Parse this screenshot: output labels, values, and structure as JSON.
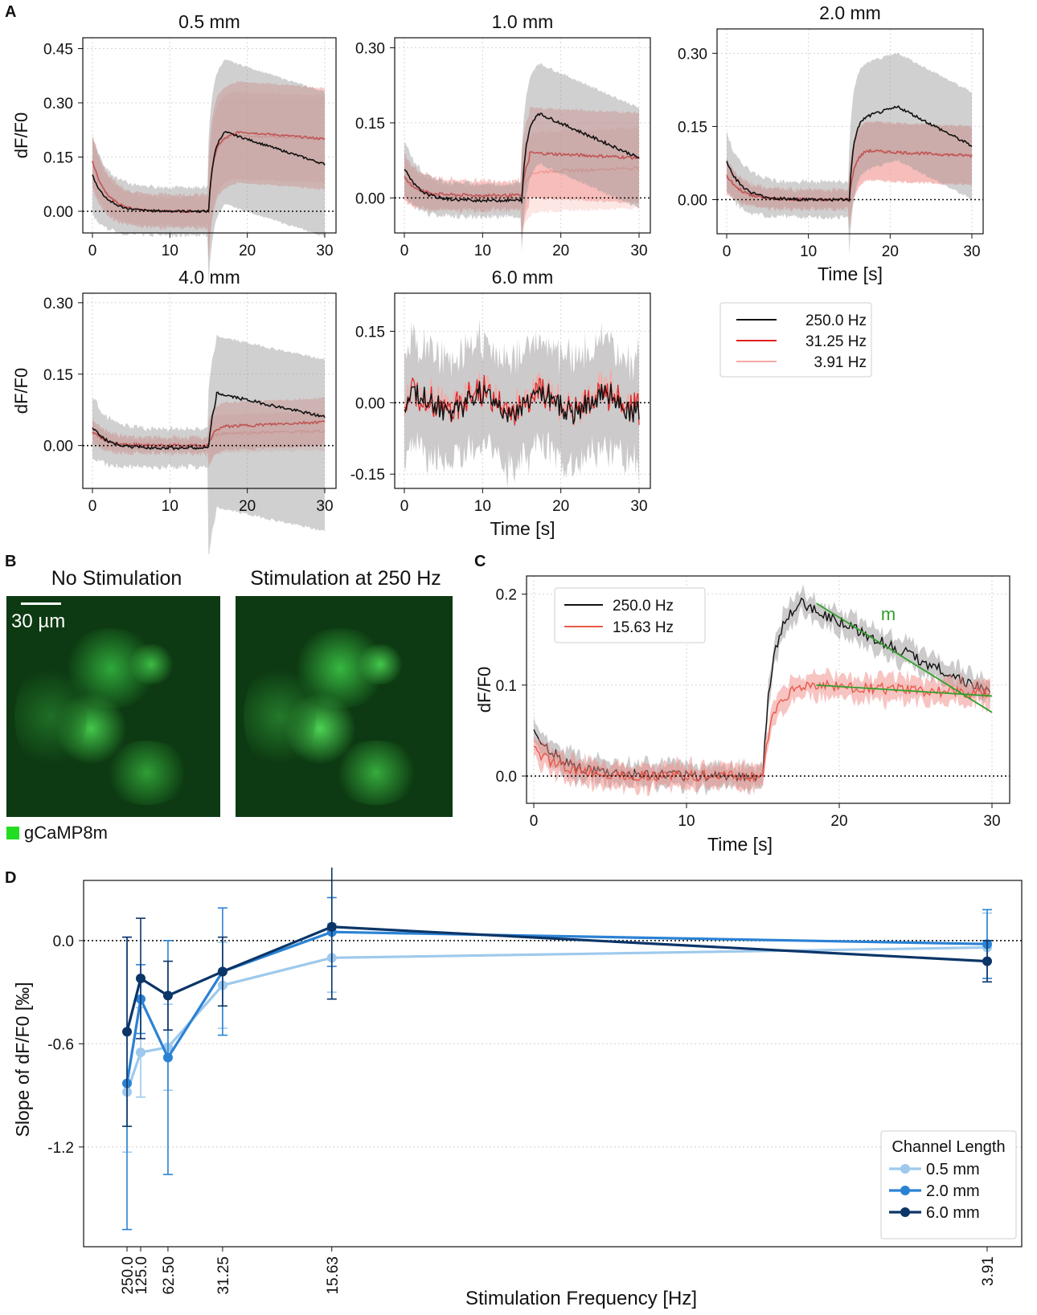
{
  "panel_letters": {
    "a": "A",
    "b": "B",
    "c": "C",
    "d": "D"
  },
  "colors": {
    "c250": "#111111",
    "c31": "#e02020",
    "c391": "#f5a8a4",
    "c1563": "#e85a4a",
    "band_gray": "#9a9696",
    "band_red": "#f08a86",
    "band_pink": "#f9c9c6",
    "fit": "#33a02c",
    "d05": "#9ec9ec",
    "d20": "#2b82d4",
    "d60": "#0c3568"
  },
  "panel_a": {
    "ylabel": "dF/F0",
    "xlabel": "Time [s]",
    "legend": [
      "250.0 Hz",
      "31.25 Hz",
      "3.91 Hz"
    ],
    "subplots": [
      {
        "title": "0.5 mm",
        "ylim": [
          -0.06,
          0.48
        ],
        "yticks": [
          "0.00",
          "0.15",
          "0.30",
          "0.45"
        ],
        "ytick_vals": [
          0,
          0.15,
          0.3,
          0.45
        ],
        "xticks": [
          "0",
          "10",
          "20",
          "30"
        ],
        "show_xlabel": false,
        "show_ylabel": true,
        "pre": [
          0.1,
          0.14,
          0.14
        ],
        "peak": [
          0.22,
          0.22,
          0.21
        ],
        "end": [
          0.13,
          0.2,
          0.2
        ],
        "pre_floor": [
          0.0,
          0.0,
          0.0
        ],
        "peak_t": [
          17,
          19,
          18
        ],
        "band": [
          0.2,
          0.14,
          0.12
        ]
      },
      {
        "title": "1.0 mm",
        "ylim": [
          -0.07,
          0.32
        ],
        "yticks": [
          "0.00",
          "0.15",
          "0.30"
        ],
        "ytick_vals": [
          0,
          0.15,
          0.3
        ],
        "xticks": [
          "0",
          "10",
          "20",
          "30"
        ],
        "show_xlabel": false,
        "show_ylabel": false,
        "pre": [
          0.06,
          0.04,
          0.04
        ],
        "peak": [
          0.17,
          0.09,
          0.06
        ],
        "end": [
          0.08,
          0.08,
          0.06
        ],
        "pre_floor": [
          -0.005,
          0.005,
          0.0
        ],
        "peak_t": [
          17,
          16,
          30
        ],
        "band": [
          0.1,
          0.09,
          0.08
        ]
      },
      {
        "title": "2.0 mm",
        "ylim": [
          -0.07,
          0.35
        ],
        "yticks": [
          "0.00",
          "0.15",
          "0.30"
        ],
        "ytick_vals": [
          0,
          0.15,
          0.3
        ],
        "xticks": [
          "0",
          "10",
          "20",
          "30"
        ],
        "show_xlabel": true,
        "show_ylabel": false,
        "pre": [
          0.08,
          0.05,
          0.05
        ],
        "peak": [
          0.19,
          0.1,
          0.1
        ],
        "end": [
          0.11,
          0.09,
          0.09
        ],
        "pre_floor": [
          0.0,
          0.0,
          0.0
        ],
        "peak_t": [
          21,
          17,
          17
        ],
        "band": [
          0.11,
          0.06,
          0.06
        ]
      },
      {
        "title": "4.0 mm",
        "ylim": [
          -0.09,
          0.32
        ],
        "yticks": [
          "0.00",
          "0.15",
          "0.30"
        ],
        "ytick_vals": [
          0,
          0.15,
          0.3
        ],
        "xticks": [
          "0",
          "10",
          "20",
          "30"
        ],
        "show_xlabel": false,
        "show_ylabel": true,
        "pre": [
          0.04,
          0.03,
          0.03
        ],
        "peak": [
          0.11,
          0.04,
          0.03
        ],
        "end": [
          0.06,
          0.05,
          0.05
        ],
        "pre_floor": [
          -0.005,
          0.0,
          0.0
        ],
        "peak_t": [
          16,
          17,
          30
        ],
        "band": [
          0.12,
          0.05,
          0.04
        ],
        "band_low_extra": 0.12
      },
      {
        "title": "6.0 mm",
        "ylim": [
          -0.18,
          0.23
        ],
        "yticks": [
          "-0.15",
          "0.00",
          "0.15"
        ],
        "ytick_vals": [
          -0.15,
          0,
          0.15
        ],
        "xticks": [
          "0",
          "10",
          "20",
          "30"
        ],
        "show_xlabel": true,
        "show_ylabel": false,
        "noisy": true
      }
    ]
  },
  "panel_b": {
    "titles": [
      "No Stimulation",
      "Stimulation at 250 Hz"
    ],
    "scale_label": "30 µm",
    "channel_label": "gCaMP8m"
  },
  "panel_c": {
    "ylabel": "dF/F0",
    "xlabel": "Time [s]",
    "yticks": [
      "0.0",
      "0.1",
      "0.2"
    ],
    "ytick_vals": [
      0,
      0.1,
      0.2
    ],
    "ylim": [
      -0.03,
      0.22
    ],
    "xticks": [
      "0",
      "10",
      "20",
      "30"
    ],
    "legend": [
      "250.0 Hz",
      "15.63 Hz"
    ],
    "fit_label": "m",
    "series": [
      {
        "name": "250.0 Hz",
        "pre": 0.05,
        "peak": 0.19,
        "end": 0.09,
        "peak_t": 17.5
      },
      {
        "name": "15.63 Hz",
        "pre": 0.03,
        "peak": 0.1,
        "end": 0.09,
        "peak_t": 18
      }
    ],
    "fits": [
      {
        "x": [
          18.5,
          30
        ],
        "y": [
          0.19,
          0.07
        ]
      },
      {
        "x": [
          18.5,
          30
        ],
        "y": [
          0.1,
          0.088
        ]
      }
    ]
  },
  "chart_data": {
    "type": "line",
    "title": "",
    "xlabel": "Stimulation Frequency [Hz]",
    "ylabel": "Slope of dF/F0 [‰]",
    "categories": [
      "250.0",
      "125.0",
      "62.50",
      "31.25",
      "15.63",
      "3.91"
    ],
    "x_period_s": [
      0.004,
      0.008,
      0.016,
      0.032,
      0.064,
      0.256
    ],
    "ylim": [
      -1.78,
      0.35
    ],
    "yticks": [
      "-1.2",
      "-0.6",
      "0.0"
    ],
    "ytick_vals": [
      -1.2,
      -0.6,
      0.0
    ],
    "legend_title": "Channel Length",
    "legend_position": "bottom-right",
    "series": [
      {
        "name": "0.5 mm",
        "values": [
          -0.88,
          -0.65,
          -0.62,
          -0.26,
          -0.1,
          -0.04
        ],
        "err": [
          0.35,
          0.26,
          0.25,
          0.25,
          0.2,
          0.2
        ]
      },
      {
        "name": "2.0 mm",
        "values": [
          -0.83,
          -0.34,
          -0.68,
          -0.18,
          0.05,
          -0.02
        ],
        "err": [
          0.85,
          0.2,
          0.68,
          0.37,
          0.2,
          0.2
        ]
      },
      {
        "name": "6.0 mm",
        "values": [
          -0.53,
          -0.22,
          -0.32,
          -0.18,
          0.08,
          -0.12
        ],
        "err": [
          0.55,
          0.35,
          0.2,
          0.2,
          0.42,
          0.12
        ]
      }
    ]
  }
}
